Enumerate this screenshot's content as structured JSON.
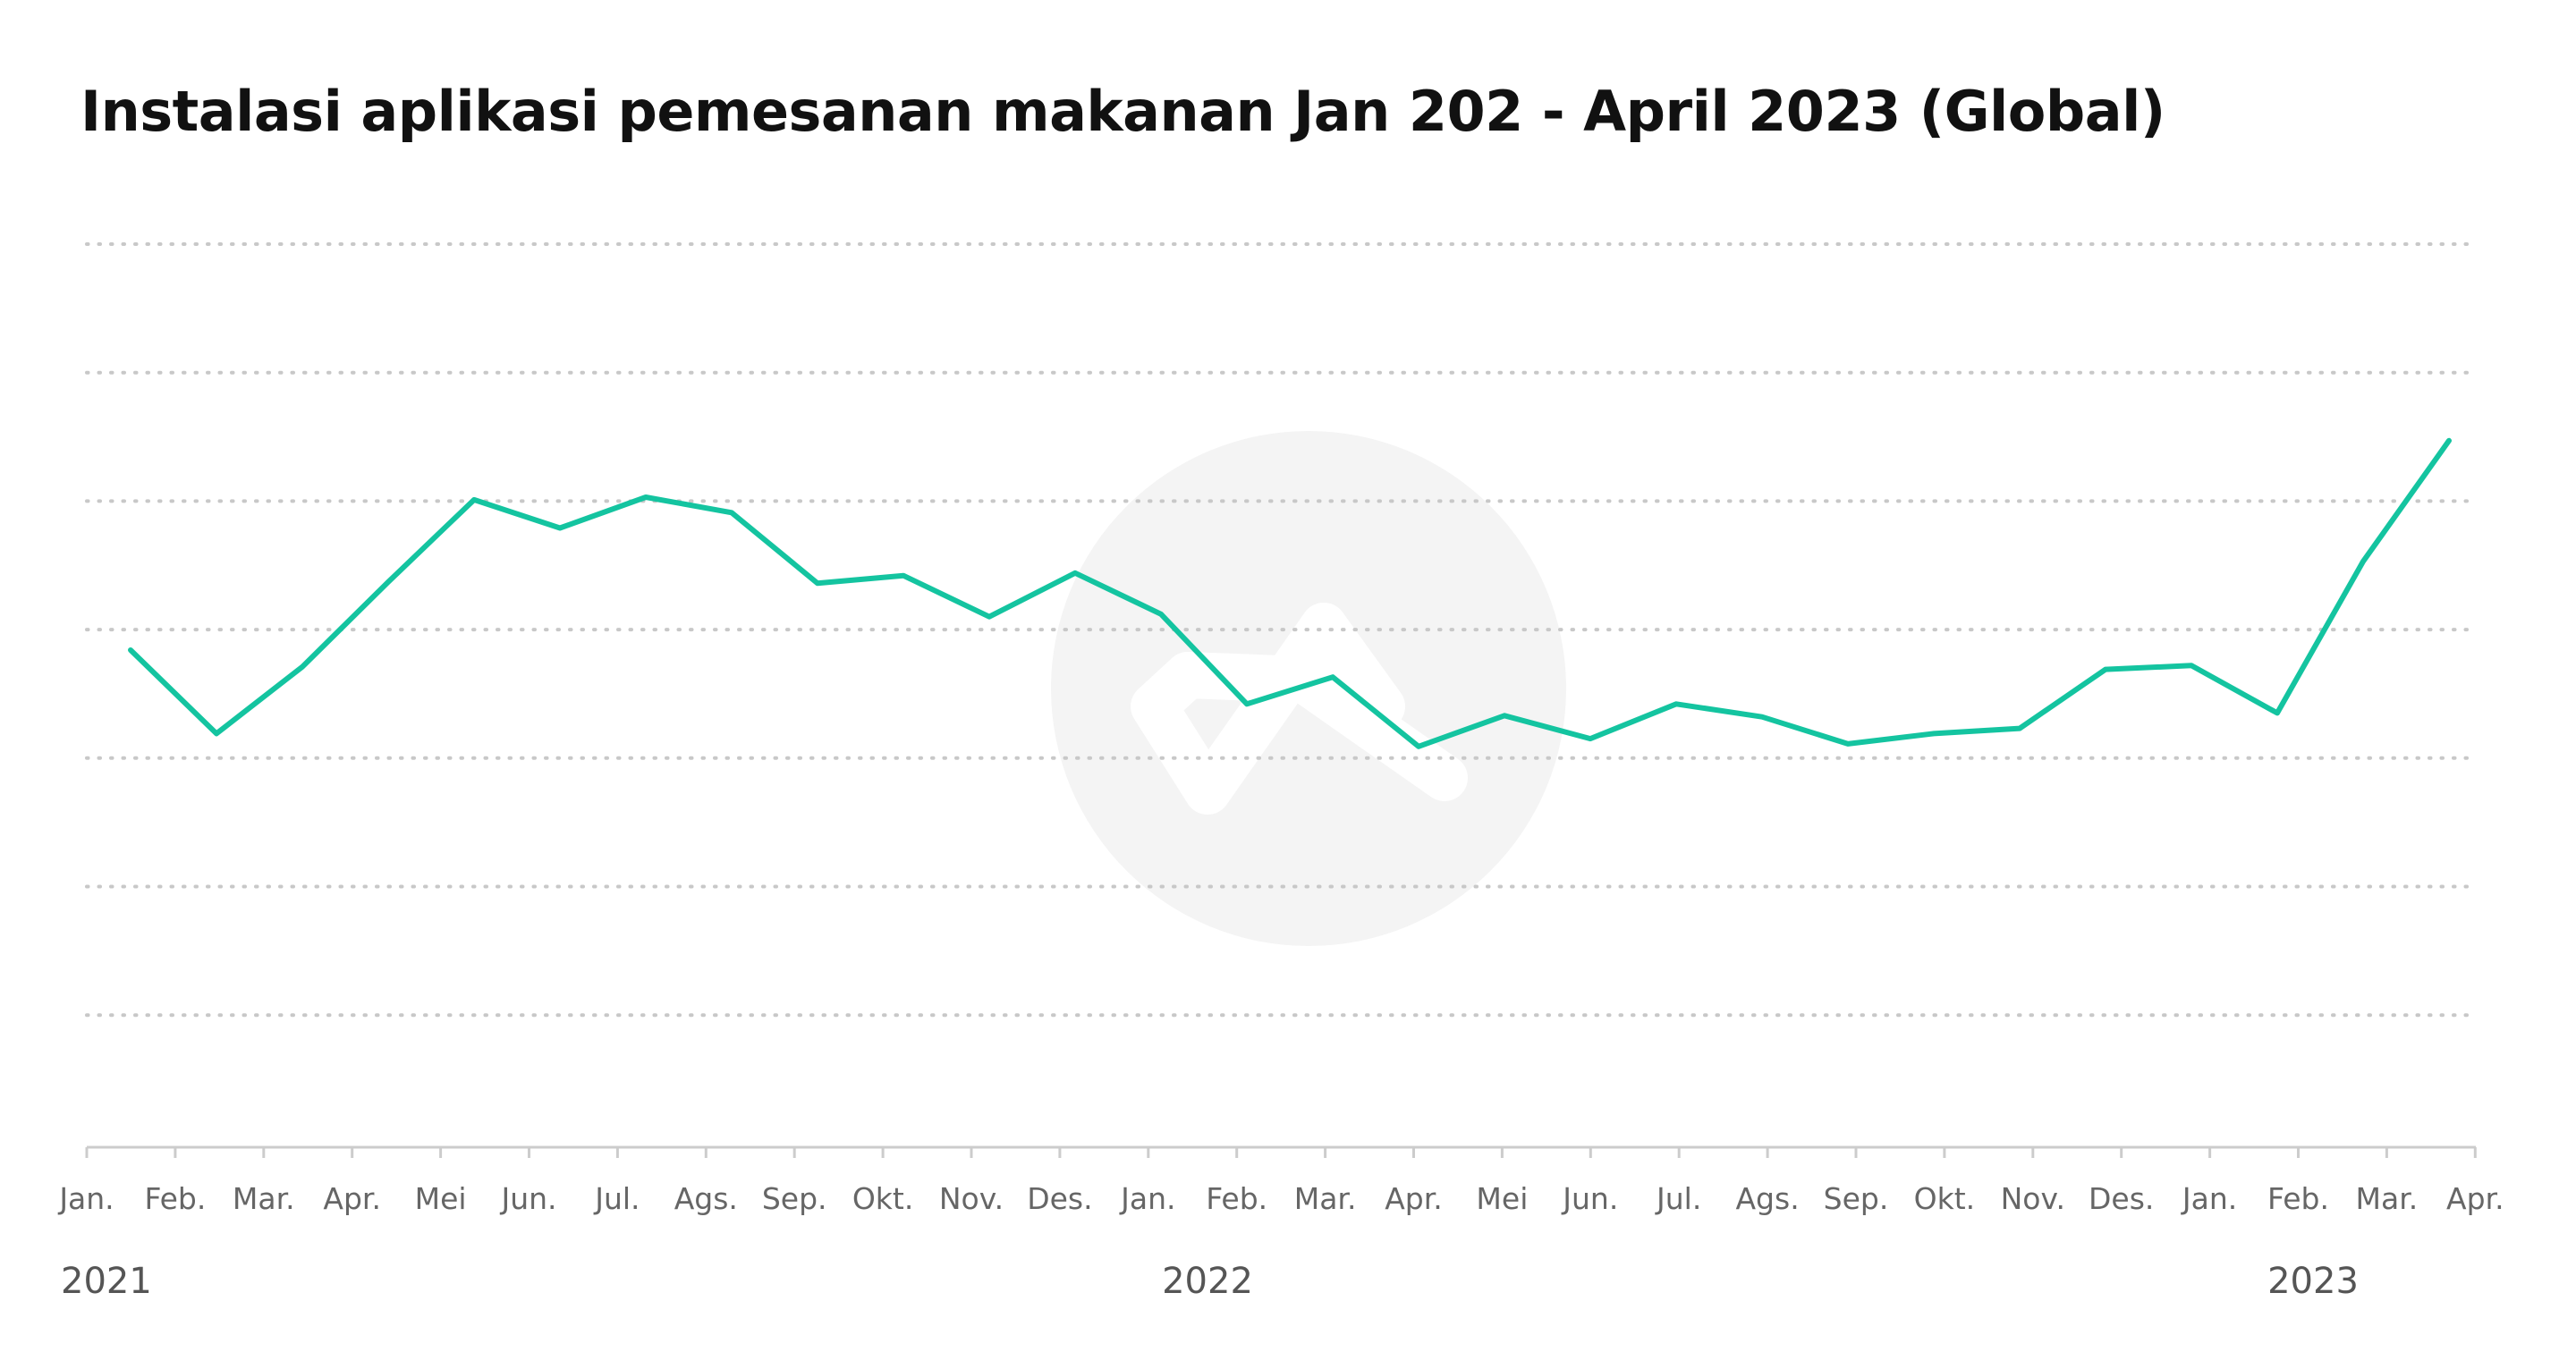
{
  "title": "Instalasi aplikasi pemesanan makanan Jan 202 - April 2023 (Global)",
  "chart_data": {
    "type": "line",
    "x_ticks": [
      "Jan.",
      "Feb.",
      "Mar.",
      "Apr.",
      "Mei",
      "Jun.",
      "Jul.",
      "Ags.",
      "Sep.",
      "Okt.",
      "Nov.",
      "Des.",
      "Jan.",
      "Feb.",
      "Mar.",
      "Apr.",
      "Mei",
      "Jun.",
      "Jul.",
      "Ags.",
      "Sep.",
      "Okt.",
      "Nov.",
      "Des.",
      "Jan.",
      "Feb.",
      "Mar.",
      "Apr."
    ],
    "year_labels": [
      "2021",
      "2022",
      "2023"
    ],
    "y_gridlines": 8,
    "grid": true,
    "y_tick_labels_shown": false,
    "series": [
      {
        "color": "#14c4a0",
        "values": [
          4.87,
          4.22,
          4.74,
          5.4,
          6.04,
          5.82,
          6.06,
          5.94,
          5.39,
          5.45,
          5.13,
          5.47,
          5.15,
          4.45,
          4.66,
          4.12,
          4.36,
          4.18,
          4.45,
          4.35,
          4.14,
          4.22,
          4.26,
          4.72,
          4.75,
          4.38,
          5.56,
          6.5
        ]
      }
    ],
    "watermark": "logo",
    "colors": {
      "axis": "#cccccc",
      "grid": "#c8c8c8",
      "watermark": "#f4f4f4"
    }
  }
}
